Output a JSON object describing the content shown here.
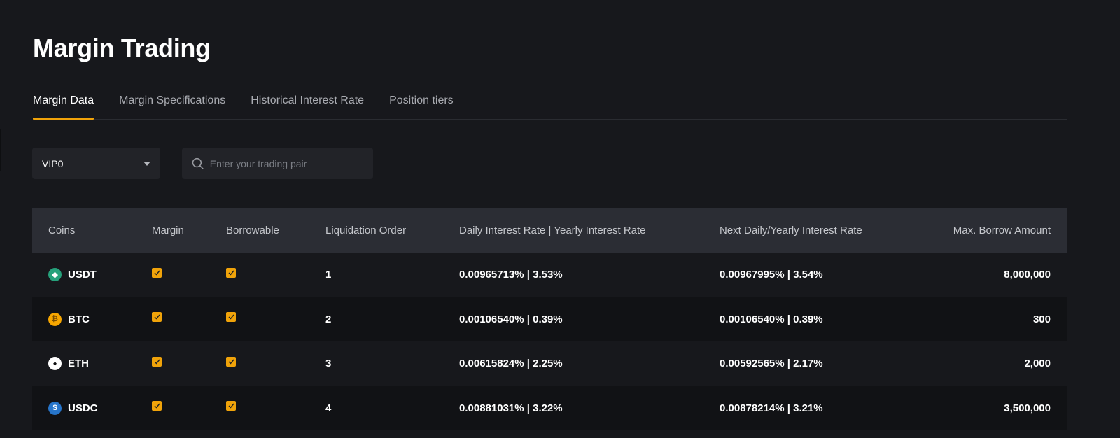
{
  "page": {
    "title": "Margin Trading"
  },
  "tabs": [
    {
      "label": "Margin Data",
      "active": true
    },
    {
      "label": "Margin Specifications"
    },
    {
      "label": "Historical Interest Rate"
    },
    {
      "label": "Position tiers"
    }
  ],
  "filters": {
    "vip_level": "VIP0",
    "search_placeholder": "Enter your trading pair"
  },
  "colors": {
    "accent": "#f0a30a",
    "background": "#17181c",
    "header_bg": "#2b2d34"
  },
  "table": {
    "headers": [
      "Coins",
      "Margin",
      "Borrowable",
      "Liquidation Order",
      "Daily Interest Rate | Yearly Interest Rate",
      "Next Daily/Yearly Interest Rate",
      "Max. Borrow Amount"
    ],
    "rows": [
      {
        "coin": "USDT",
        "icon": "usdt-icon",
        "icon_color": "#26a17b",
        "margin": true,
        "borrowable": true,
        "order": "1",
        "rate": "0.00965713% | 3.53%",
        "next_rate": "0.00967995% | 3.54%",
        "max": "8,000,000"
      },
      {
        "coin": "BTC",
        "icon": "btc-icon",
        "icon_color": "#f7a600",
        "margin": true,
        "borrowable": true,
        "order": "2",
        "rate": "0.00106540% | 0.39%",
        "next_rate": "0.00106540% | 0.39%",
        "max": "300"
      },
      {
        "coin": "ETH",
        "icon": "eth-icon",
        "icon_color": "#ffffff",
        "margin": true,
        "borrowable": true,
        "order": "3",
        "rate": "0.00615824% | 2.25%",
        "next_rate": "0.00592565% | 2.17%",
        "max": "2,000"
      },
      {
        "coin": "USDC",
        "icon": "usdc-icon",
        "icon_color": "#2775ca",
        "margin": true,
        "borrowable": true,
        "order": "4",
        "rate": "0.00881031% | 3.22%",
        "next_rate": "0.00878214% | 3.21%",
        "max": "3,500,000"
      }
    ]
  }
}
